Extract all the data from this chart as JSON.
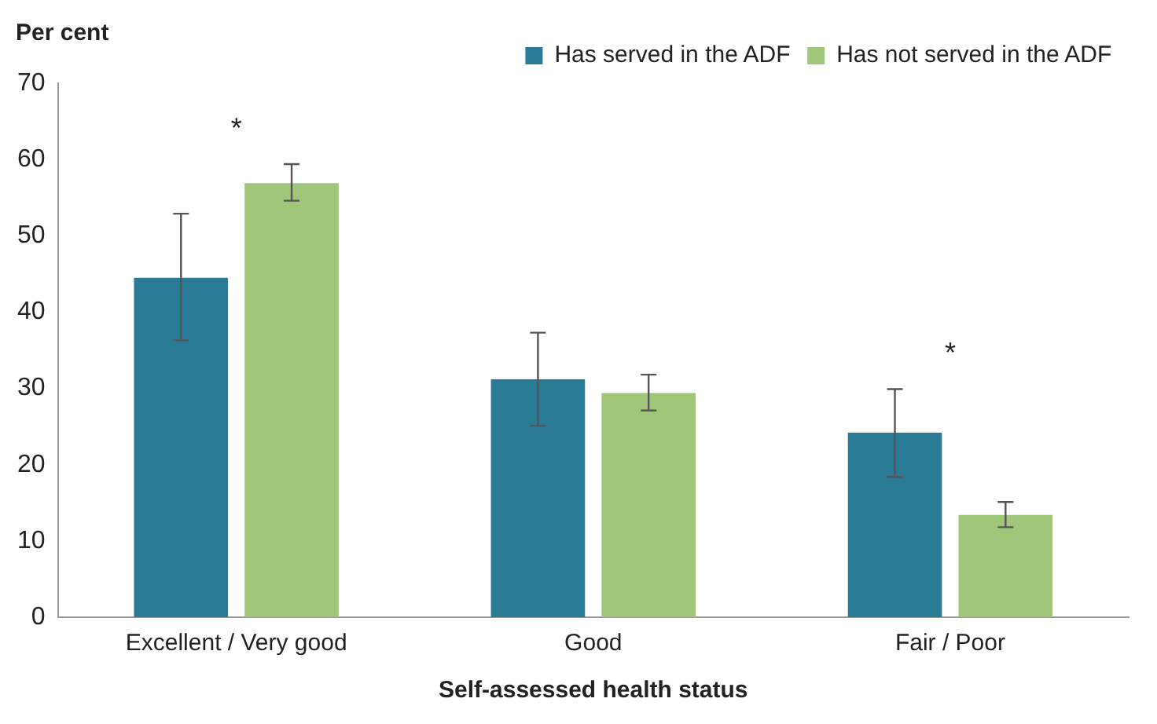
{
  "chart_data": {
    "type": "bar",
    "ylabel": "Per cent",
    "xlabel": "Self-assessed health status",
    "categories": [
      "Excellent / Very good",
      "Good",
      "Fair / Poor"
    ],
    "series": [
      {
        "name": "Has served in the ADF",
        "color": "#2a7b96",
        "values": [
          44.5,
          31.2,
          24.2
        ],
        "errors": [
          [
            36.3,
            52.9
          ],
          [
            25.1,
            37.3
          ],
          [
            18.4,
            29.9
          ]
        ]
      },
      {
        "name": "Has not served in the ADF",
        "color": "#a0c67a",
        "values": [
          56.9,
          29.4,
          13.4
        ],
        "errors": [
          [
            54.6,
            59.4
          ],
          [
            27.1,
            31.8
          ],
          [
            11.8,
            15.1
          ]
        ]
      }
    ],
    "annotations": [
      "*",
      "*"
    ],
    "ylim": [
      0,
      70
    ],
    "yticks": [
      0,
      10,
      20,
      30,
      40,
      50,
      60,
      70
    ],
    "grid": false,
    "legend": "top right"
  }
}
